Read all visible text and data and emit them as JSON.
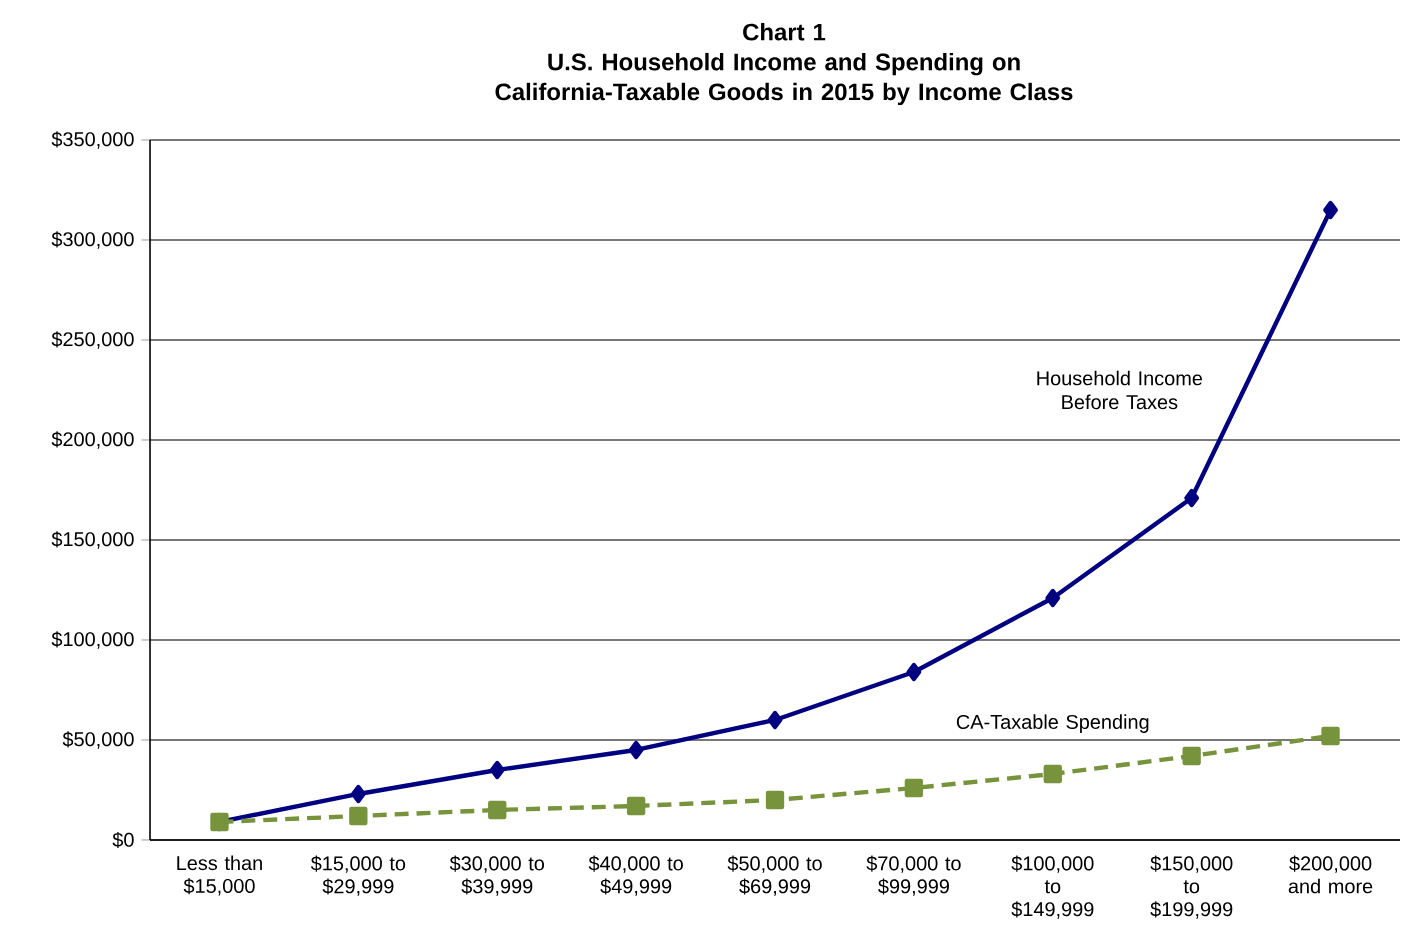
{
  "chart_data": {
    "type": "line",
    "title": "Chart 1",
    "subtitle": "U.S. Household Income and Spending on California-Taxable Goods in 2015 by Income Class",
    "categories": [
      "Less than $15,000",
      "$15,000 to $29,999",
      "$30,000 to $39,999",
      "$40,000 to $49,999",
      "$50,000 to $69,999",
      "$70,000 to $99,999",
      "$100,000 to $149,999",
      "$150,000 to $199,999",
      "$200,000 and more"
    ],
    "series": [
      {
        "name": "Household Income Before Taxes",
        "color": "#000080",
        "marker": "diamond",
        "line_style": "solid",
        "values": [
          9000,
          23000,
          35000,
          45000,
          60000,
          84000,
          121000,
          171000,
          315000
        ]
      },
      {
        "name": "CA-Taxable Spending",
        "color": "#77933c",
        "marker": "square",
        "line_style": "dashed",
        "values": [
          9000,
          12000,
          15000,
          17000,
          20000,
          26000,
          33000,
          42000,
          52000
        ]
      }
    ],
    "ylim": [
      0,
      350000
    ],
    "yticks": [
      {
        "value": 0,
        "label": "$0"
      },
      {
        "value": 50000,
        "label": "$50,000"
      },
      {
        "value": 100000,
        "label": "$100,000"
      },
      {
        "value": 150000,
        "label": "$150,000"
      },
      {
        "value": 200000,
        "label": "$200,000"
      },
      {
        "value": 250000,
        "label": "$250,000"
      },
      {
        "value": 300000,
        "label": "$300,000"
      },
      {
        "value": 350000,
        "label": "$350,000"
      }
    ],
    "grid": "y",
    "legend": false
  }
}
